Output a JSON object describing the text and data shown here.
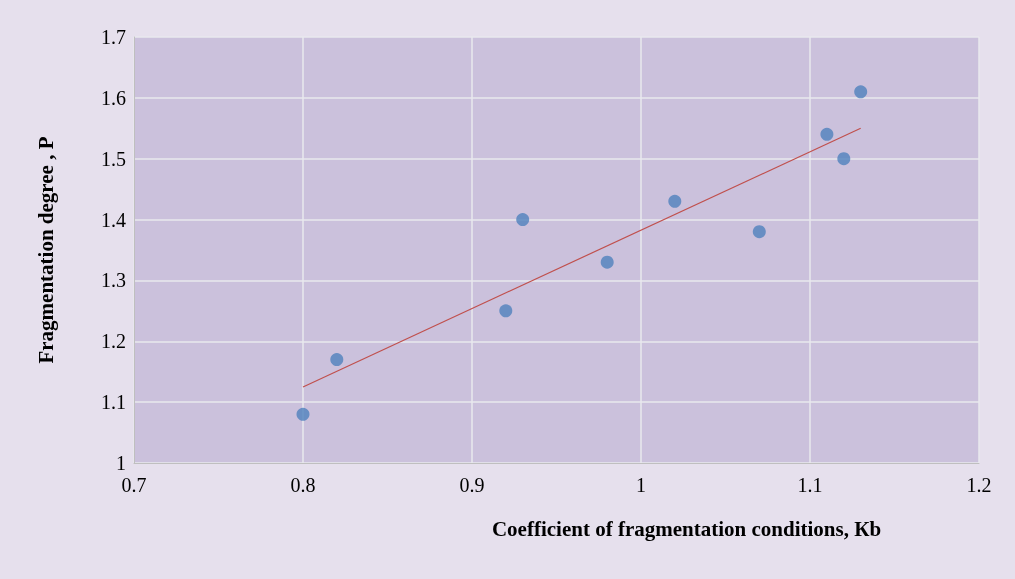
{
  "chart_data": {
    "type": "scatter",
    "xlabel": "Coefficient of fragmentation conditions, Кb",
    "ylabel": "Fragmentation degree , P",
    "series": [
      {
        "color": "#4f81bd",
        "x": [
          0.8,
          0.82,
          0.92,
          0.93,
          0.98,
          1.02,
          1.07,
          1.11,
          1.12,
          1.13
        ],
        "values": [
          1.08,
          1.17,
          1.25,
          1.4,
          1.33,
          1.43,
          1.38,
          1.54,
          1.5,
          1.61
        ]
      },
      {
        "type": "line",
        "color": "#c0504d",
        "marker": "none",
        "x": [
          0.8,
          1.13
        ],
        "values": [
          1.125,
          1.55
        ]
      }
    ],
    "xlim": [
      0.7,
      1.2
    ],
    "xticks": [
      0.7,
      0.8,
      0.9,
      1,
      1.1,
      1.2
    ],
    "ylim": [
      1,
      1.7
    ],
    "yticks": [
      1,
      1.1,
      1.2,
      1.3,
      1.4,
      1.5,
      1.6,
      1.7
    ],
    "grid": true,
    "marker": "circle"
  }
}
